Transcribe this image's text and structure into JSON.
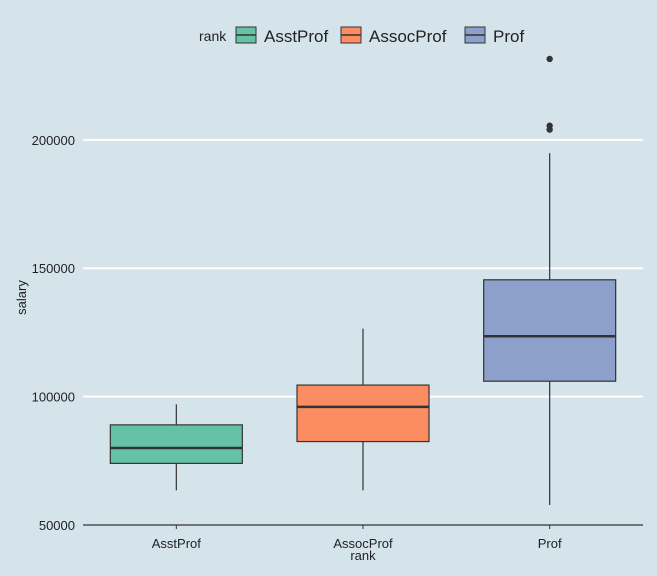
{
  "chart_data": {
    "type": "box",
    "xlabel": "rank",
    "ylabel": "salary",
    "ylim": [
      50000,
      235000
    ],
    "yticks": [
      50000,
      100000,
      150000,
      200000
    ],
    "ytick_labels": [
      "50000",
      "100000",
      "150000",
      "200000"
    ],
    "grid": "horizontal",
    "legend": {
      "title": "rank",
      "placement": "top-center",
      "items": [
        "AsstProf",
        "AssocProf",
        "Prof"
      ]
    },
    "categories": [
      "AsstProf",
      "AssocProf",
      "Prof"
    ],
    "series": [
      {
        "name": "AsstProf",
        "color": "#66c2a5",
        "whisker_low": 63500,
        "q1": 74000,
        "median": 80000,
        "q3": 89000,
        "whisker_high": 97000,
        "outliers": []
      },
      {
        "name": "AssocProf",
        "color": "#fc8d62",
        "whisker_low": 63500,
        "q1": 82500,
        "median": 96000,
        "q3": 104500,
        "whisker_high": 126500,
        "outliers": []
      },
      {
        "name": "Prof",
        "color": "#8da0cb",
        "whisker_low": 57800,
        "q1": 106000,
        "median": 123500,
        "q3": 145500,
        "whisker_high": 194800,
        "outliers": [
          204000,
          205500,
          231500
        ]
      }
    ]
  }
}
